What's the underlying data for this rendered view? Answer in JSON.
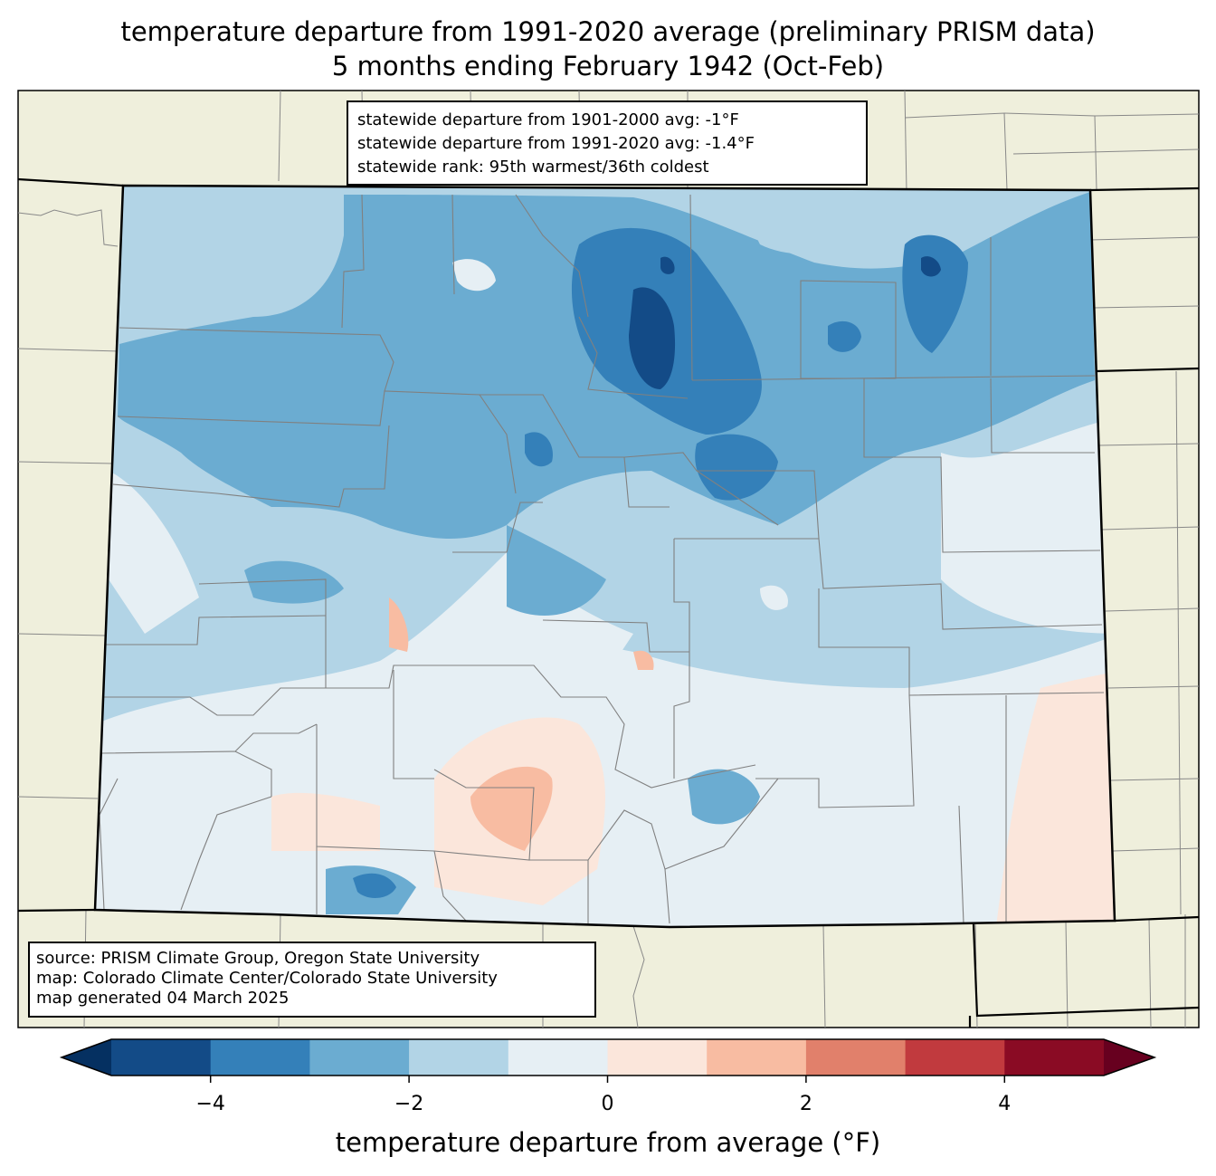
{
  "title": {
    "line1": "temperature departure from 1991-2020 average (preliminary PRISM data)",
    "line2": "5 months ending February 1942 (Oct-Feb)"
  },
  "stats": {
    "line1": "statewide departure from 1901-2000 avg: -1°F",
    "line2": "statewide departure from 1991-2020 avg: -1.4°F",
    "line3": "statewide rank: 95th warmest/36th coldest"
  },
  "source": {
    "line1": "source: PRISM Climate Group, Oregon State University",
    "line2": "map: Colorado Climate Center/Colorado State University",
    "line3": "map generated 04 March 2025"
  },
  "colorbar": {
    "label": "temperature departure from average (°F)",
    "ticks": [
      {
        "value": -4,
        "label": "−4"
      },
      {
        "value": -2,
        "label": "−2"
      },
      {
        "value": 0,
        "label": "0"
      },
      {
        "value": 2,
        "label": "2"
      },
      {
        "value": 4,
        "label": "4"
      }
    ],
    "range": [
      -5,
      5
    ],
    "levels": [
      {
        "from": -6,
        "to": -5,
        "color": "#053061"
      },
      {
        "from": -5,
        "to": -4,
        "color": "#134b87"
      },
      {
        "from": -4,
        "to": -3,
        "color": "#3480b9"
      },
      {
        "from": -3,
        "to": -2,
        "color": "#6bacd1"
      },
      {
        "from": -2,
        "to": -1,
        "color": "#b2d4e6"
      },
      {
        "from": -1,
        "to": 0,
        "color": "#e6eff4"
      },
      {
        "from": 0,
        "to": 1,
        "color": "#fbe6db"
      },
      {
        "from": 1,
        "to": 2,
        "color": "#f8bca2"
      },
      {
        "from": 2,
        "to": 3,
        "color": "#e1806b"
      },
      {
        "from": 3,
        "to": 4,
        "color": "#c13a3e"
      },
      {
        "from": 4,
        "to": 5,
        "color": "#8a0b24"
      },
      {
        "from": 5,
        "to": 6,
        "color": "#67001f"
      }
    ]
  },
  "colors": {
    "land": "#efefdc",
    "border": "#000000",
    "county": "#808080"
  }
}
